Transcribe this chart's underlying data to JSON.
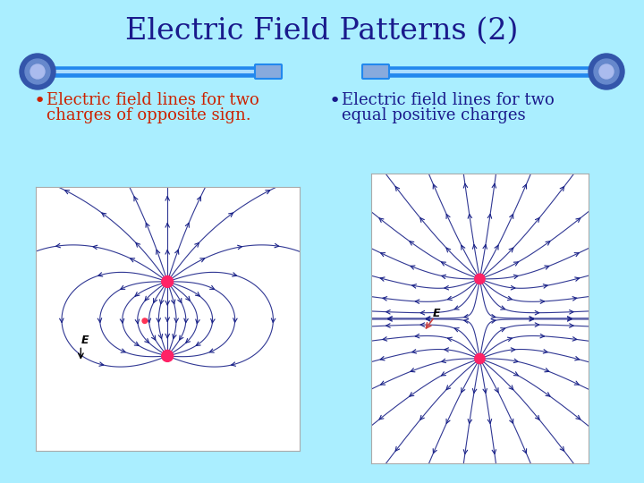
{
  "title": "Electric Field Patterns (2)",
  "title_color": "#1a1a8c",
  "title_fontsize": 24,
  "background_color": "#aaeeff",
  "bullet1_line1": "Electric field lines for two",
  "bullet1_line2": "charges of opposite sign.",
  "bullet2_line1": "Electric field lines for two",
  "bullet2_line2": "equal positive charges",
  "bullet_color_left": "#cc2200",
  "bullet_color_right": "#1a1a8c",
  "bullet_fontsize": 13,
  "separator_color": "#2288ee",
  "sep_end_color": "#3355aa",
  "sep_connector_color": "#88aadd",
  "charge_color": "#ff2266",
  "field_line_color": "#1a2288",
  "diagram_bg": "#ffffff",
  "diagram_border": "#aaaaaa",
  "e_label_color": "#000000"
}
